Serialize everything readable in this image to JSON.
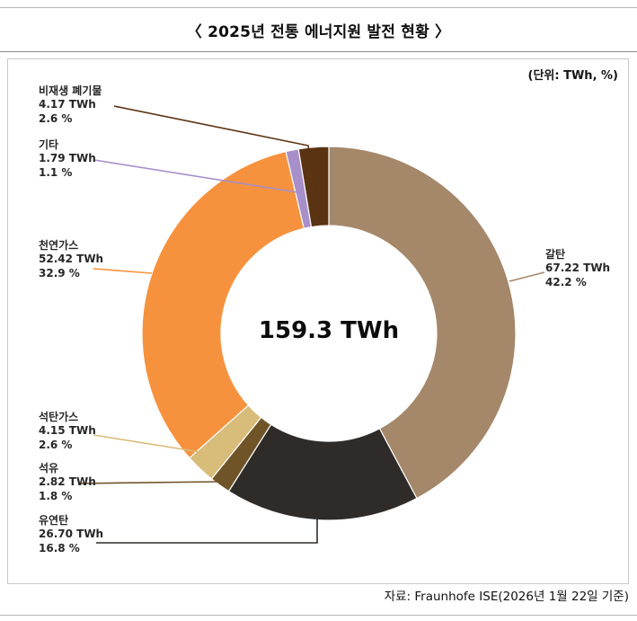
{
  "header": {
    "title": "〈 2025년 전통 에너지원 발전 현황 〉"
  },
  "chart_area": {
    "unit_label": "(단위: TWh, %)"
  },
  "footer": {
    "source": "자료: Fraunhofe ISE(2026년 1월 22일 기준)"
  },
  "chart_data": {
    "type": "pie",
    "subtype": "donut",
    "title": "2025년 전통 에너지원 발전 현황",
    "unit": "TWh, %",
    "center_label": "159.3 TWh",
    "total_twh": 159.3,
    "legend_position": "callouts",
    "segments": [
      {
        "label": "갈탄",
        "value_twh": 67.22,
        "percent": 42.2,
        "value_label": "67.22 TWh",
        "percent_label": "42.2 %",
        "color": "#a5876a"
      },
      {
        "label": "유연탄",
        "value_twh": 26.7,
        "percent": 16.8,
        "value_label": "26.70 TWh",
        "percent_label": "16.8 %",
        "color": "#2e2b29"
      },
      {
        "label": "석유",
        "value_twh": 2.82,
        "percent": 1.8,
        "value_label": "2.82 TWh",
        "percent_label": "1.8 %",
        "color": "#6f5428"
      },
      {
        "label": "석탄가스",
        "value_twh": 4.15,
        "percent": 2.6,
        "value_label": "4.15 TWh",
        "percent_label": "2.6 %",
        "color": "#d8bc7a"
      },
      {
        "label": "천연가스",
        "value_twh": 52.42,
        "percent": 32.9,
        "value_label": "52.42 TWh",
        "percent_label": "32.9 %",
        "color": "#f6923e"
      },
      {
        "label": "기타",
        "value_twh": 1.79,
        "percent": 1.1,
        "value_label": "1.79 TWh",
        "percent_label": "1.1 %",
        "color": "#a78fc9"
      },
      {
        "label": "비재생 폐기물",
        "value_twh": 4.17,
        "percent": 2.6,
        "value_label": "4.17 TWh",
        "percent_label": "2.6 %",
        "color": "#5a3312"
      }
    ]
  }
}
